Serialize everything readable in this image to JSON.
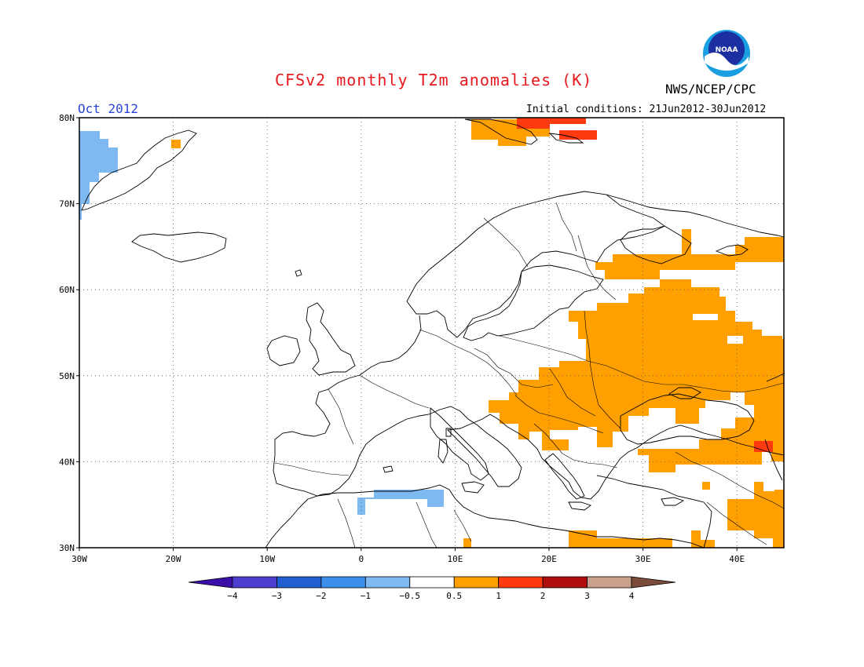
{
  "title": "CFSv2 monthly T2m anomalies (K)",
  "agency": "NWS/NCEP/CPC",
  "logo_text": "NOAA",
  "valid_month": "Oct 2012",
  "initial_conditions": "Initial conditions: 21Jun2012-30Jun2012",
  "map": {
    "lon_range": [
      -30,
      45
    ],
    "lat_range": [
      30,
      80
    ],
    "lat_ticks": [
      {
        "value": 30,
        "label": "30N"
      },
      {
        "value": 40,
        "label": "40N"
      },
      {
        "value": 50,
        "label": "50N"
      },
      {
        "value": 60,
        "label": "60N"
      },
      {
        "value": 70,
        "label": "70N"
      },
      {
        "value": 80,
        "label": "80N"
      }
    ],
    "lon_ticks": [
      {
        "value": -30,
        "label": "30W"
      },
      {
        "value": -20,
        "label": "20W"
      },
      {
        "value": -10,
        "label": "10W"
      },
      {
        "value": 0,
        "label": "0"
      },
      {
        "value": 10,
        "label": "10E"
      },
      {
        "value": 20,
        "label": "20E"
      },
      {
        "value": 30,
        "label": "30E"
      },
      {
        "value": 40,
        "label": "40E"
      }
    ],
    "grid_dotted": true
  },
  "colorbar": {
    "labels": [
      "−4",
      "−3",
      "−2",
      "−1",
      "−0.5",
      "0.5",
      "1",
      "2",
      "3",
      "4"
    ],
    "colors": [
      "#3a0fa8",
      "#4c3fd0",
      "#1f5fd0",
      "#3b8fea",
      "#7eb9f2",
      "#ffffff",
      "#ffa000",
      "#ff3a0f",
      "#b00f0f",
      "#c8a08c",
      "#7a4a3a"
    ]
  },
  "anomaly_colors": {
    "warm_0_5_to_1": "#ffa000",
    "warm_1_to_2": "#ff3a0f",
    "cool_0_5_to_1": "#7eb9f2"
  }
}
